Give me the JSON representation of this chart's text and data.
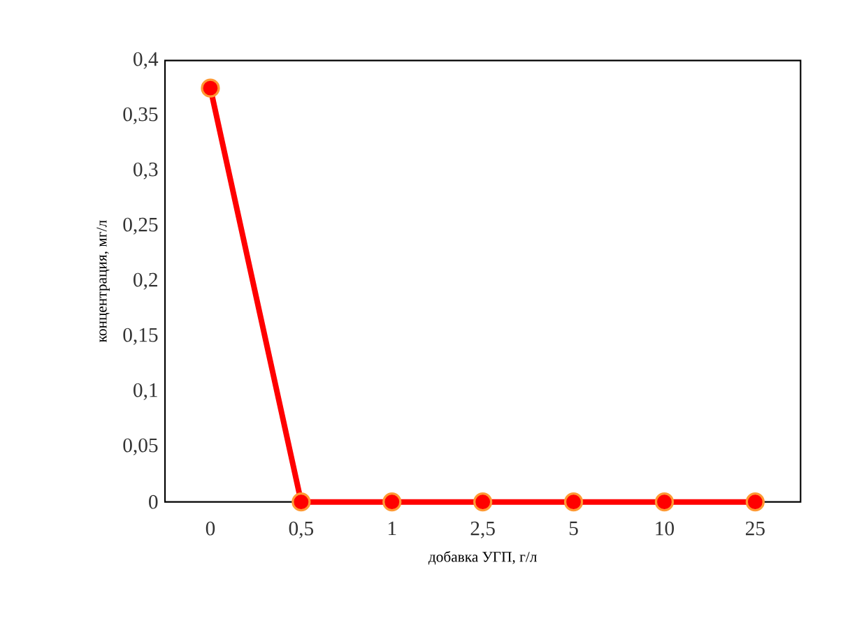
{
  "chart_data": {
    "type": "line",
    "xlabel": "добавка  УГП, г/л",
    "ylabel": "концентрация,  мг/л",
    "categories": [
      "0",
      "0,5",
      "1",
      "2,5",
      "5",
      "10",
      "25"
    ],
    "series": [
      {
        "color": "#ff0000",
        "values": [
          0.375,
          0,
          0,
          0,
          0,
          0,
          0
        ]
      }
    ],
    "ylim": [
      0,
      0.4
    ],
    "yticks": [
      {
        "value": 0,
        "label": "0"
      },
      {
        "value": 0.05,
        "label": "0,05"
      },
      {
        "value": 0.1,
        "label": "0,1"
      },
      {
        "value": 0.15,
        "label": "0,15"
      },
      {
        "value": 0.2,
        "label": "0,2"
      },
      {
        "value": 0.25,
        "label": "0,25"
      },
      {
        "value": 0.3,
        "label": "0,3"
      },
      {
        "value": 0.35,
        "label": "0,35"
      },
      {
        "value": 0.4,
        "label": "0,4"
      }
    ],
    "grid": false,
    "marker": "circle",
    "line_style": "solid"
  }
}
